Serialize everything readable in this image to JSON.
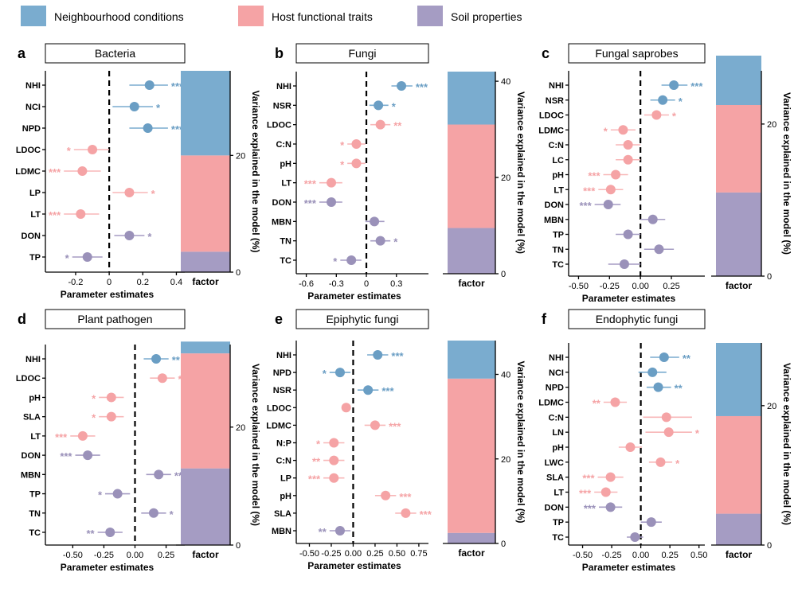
{
  "colors": {
    "neighbourhood": "#7aaccf",
    "host": "#f5a3a5",
    "soil": "#a59cc3",
    "neighbourhood_dark": "#6a9ec4",
    "host_light": "#f8b7b8",
    "soil_dark": "#9a91b9"
  },
  "legend": [
    {
      "label": "Neighbourhood conditions",
      "group": "neighbourhood"
    },
    {
      "label": "Host functional traits",
      "group": "host"
    },
    {
      "label": "Soil properties",
      "group": "soil"
    }
  ],
  "common": {
    "xlabel": "Parameter estimates",
    "bar_xlabel": "factor",
    "bar_ylabel": "Variance explained in the model (%)"
  },
  "chart_data": [
    {
      "panel": "a",
      "title": "Bacteria",
      "type": "forest+stacked_bar",
      "xlim": [
        -0.38,
        0.45
      ],
      "xticks": [
        -0.2,
        0,
        0.2,
        0.4
      ],
      "xtick_labels": [
        "-0.2",
        "0",
        "0.2",
        "0.4"
      ],
      "rows": [
        {
          "label": "NHI",
          "group": "neighbourhood",
          "est": 0.24,
          "lo": 0.12,
          "hi": 0.35,
          "sig": "***"
        },
        {
          "label": "NCI",
          "group": "neighbourhood",
          "est": 0.15,
          "lo": 0.02,
          "hi": 0.26,
          "sig": "*"
        },
        {
          "label": "NPD",
          "group": "neighbourhood",
          "est": 0.23,
          "lo": 0.12,
          "hi": 0.35,
          "sig": "***"
        },
        {
          "label": "LDOC",
          "group": "host",
          "est": -0.1,
          "lo": -0.21,
          "hi": 0.0,
          "sig": "*"
        },
        {
          "label": "LDMC",
          "group": "host",
          "est": -0.16,
          "lo": -0.27,
          "hi": -0.05,
          "sig": "***"
        },
        {
          "label": "LP",
          "group": "host",
          "est": 0.12,
          "lo": 0.02,
          "hi": 0.23,
          "sig": "*"
        },
        {
          "label": "LT",
          "group": "host",
          "est": -0.17,
          "lo": -0.27,
          "hi": -0.06,
          "sig": "***"
        },
        {
          "label": "DON",
          "group": "soil",
          "est": 0.12,
          "lo": 0.03,
          "hi": 0.21,
          "sig": "*"
        },
        {
          "label": "TP",
          "group": "soil",
          "est": -0.13,
          "lo": -0.22,
          "hi": -0.04,
          "sig": "*"
        }
      ],
      "bar": {
        "ymax": 34.5,
        "yticks": [
          0,
          20
        ],
        "segments": [
          {
            "group": "soil",
            "value": 3.5
          },
          {
            "group": "host",
            "value": 16.5
          },
          {
            "group": "neighbourhood",
            "value": 14.5
          }
        ]
      }
    },
    {
      "panel": "b",
      "title": "Fungi",
      "type": "forest+stacked_bar",
      "xlim": [
        -0.7,
        0.62
      ],
      "xticks": [
        -0.6,
        -0.3,
        0,
        0.3
      ],
      "xtick_labels": [
        "-0.6",
        "-0.3",
        "0",
        "0.3"
      ],
      "rows": [
        {
          "label": "NHI",
          "group": "neighbourhood",
          "est": 0.35,
          "lo": 0.25,
          "hi": 0.46,
          "sig": "***"
        },
        {
          "label": "NSR",
          "group": "neighbourhood",
          "est": 0.12,
          "lo": 0.03,
          "hi": 0.22,
          "sig": "*"
        },
        {
          "label": "LDOC",
          "group": "host",
          "est": 0.14,
          "lo": 0.04,
          "hi": 0.24,
          "sig": "**"
        },
        {
          "label": "C:N",
          "group": "host",
          "est": -0.1,
          "lo": -0.19,
          "hi": -0.01,
          "sig": "*"
        },
        {
          "label": "pH",
          "group": "host",
          "est": -0.1,
          "lo": -0.19,
          "hi": -0.01,
          "sig": "*"
        },
        {
          "label": "LT",
          "group": "host",
          "est": -0.35,
          "lo": -0.47,
          "hi": -0.24,
          "sig": "***"
        },
        {
          "label": "DON",
          "group": "soil",
          "est": -0.35,
          "lo": -0.47,
          "hi": -0.24,
          "sig": "***"
        },
        {
          "label": "MBN",
          "group": "soil",
          "est": 0.08,
          "lo": -0.01,
          "hi": 0.18,
          "sig": ""
        },
        {
          "label": "TN",
          "group": "soil",
          "est": 0.14,
          "lo": 0.04,
          "hi": 0.24,
          "sig": "*"
        },
        {
          "label": "TC",
          "group": "soil",
          "est": -0.15,
          "lo": -0.26,
          "hi": -0.05,
          "sig": "*"
        }
      ],
      "bar": {
        "ymax": 42,
        "yticks": [
          0,
          20,
          40
        ],
        "segments": [
          {
            "group": "soil",
            "value": 9.5
          },
          {
            "group": "host",
            "value": 21.5
          },
          {
            "group": "neighbourhood",
            "value": 11
          }
        ]
      }
    },
    {
      "panel": "c",
      "title": "Fungal saprobes",
      "type": "forest+stacked_bar",
      "xlim": [
        -0.58,
        0.52
      ],
      "xticks": [
        -0.5,
        -0.25,
        0,
        0.25
      ],
      "xtick_labels": [
        "-0.50",
        "-0.25",
        "0.00",
        "0.25"
      ],
      "rows": [
        {
          "label": "NHI",
          "group": "neighbourhood",
          "est": 0.27,
          "lo": 0.17,
          "hi": 0.38,
          "sig": "***"
        },
        {
          "label": "NSR",
          "group": "neighbourhood",
          "est": 0.18,
          "lo": 0.08,
          "hi": 0.28,
          "sig": "*"
        },
        {
          "label": "LDOC",
          "group": "host",
          "est": 0.13,
          "lo": 0.03,
          "hi": 0.23,
          "sig": "*"
        },
        {
          "label": "LDMC",
          "group": "host",
          "est": -0.14,
          "lo": -0.24,
          "hi": -0.04,
          "sig": "*"
        },
        {
          "label": "C:N",
          "group": "host",
          "est": -0.1,
          "lo": -0.2,
          "hi": 0.0,
          "sig": ""
        },
        {
          "label": "LC",
          "group": "host",
          "est": -0.1,
          "lo": -0.2,
          "hi": 0.0,
          "sig": ""
        },
        {
          "label": "pH",
          "group": "host",
          "est": -0.2,
          "lo": -0.3,
          "hi": -0.1,
          "sig": "***"
        },
        {
          "label": "LT",
          "group": "host",
          "est": -0.24,
          "lo": -0.34,
          "hi": -0.14,
          "sig": "***"
        },
        {
          "label": "DON",
          "group": "soil",
          "est": -0.26,
          "lo": -0.37,
          "hi": -0.16,
          "sig": "***"
        },
        {
          "label": "MBN",
          "group": "soil",
          "est": 0.1,
          "lo": 0.0,
          "hi": 0.2,
          "sig": ""
        },
        {
          "label": "TP",
          "group": "soil",
          "est": -0.1,
          "lo": -0.2,
          "hi": 0.0,
          "sig": ""
        },
        {
          "label": "TN",
          "group": "soil",
          "est": 0.15,
          "lo": 0.03,
          "hi": 0.27,
          "sig": ""
        },
        {
          "label": "TC",
          "group": "soil",
          "est": -0.13,
          "lo": -0.26,
          "hi": 0.0,
          "sig": ""
        }
      ],
      "bar": {
        "ymax": 27,
        "yticks": [
          0,
          20
        ],
        "segments": [
          {
            "group": "soil",
            "value": 11
          },
          {
            "group": "host",
            "value": 11.5
          },
          {
            "group": "neighbourhood",
            "value": 6.5
          }
        ]
      }
    },
    {
      "panel": "d",
      "title": "Plant pathogen",
      "type": "forest+stacked_bar",
      "xlim": [
        -0.72,
        0.4
      ],
      "xticks": [
        -0.5,
        -0.25,
        0,
        0.25
      ],
      "xtick_labels": [
        "-0.50",
        "-0.25",
        "0.00",
        "0.25"
      ],
      "rows": [
        {
          "label": "NHI",
          "group": "neighbourhood",
          "est": 0.17,
          "lo": 0.07,
          "hi": 0.27,
          "sig": "**"
        },
        {
          "label": "LDOC",
          "group": "host",
          "est": 0.22,
          "lo": 0.12,
          "hi": 0.32,
          "sig": "***"
        },
        {
          "label": "pH",
          "group": "host",
          "est": -0.19,
          "lo": -0.29,
          "hi": -0.09,
          "sig": "*"
        },
        {
          "label": "SLA",
          "group": "host",
          "est": -0.19,
          "lo": -0.29,
          "hi": -0.09,
          "sig": "*"
        },
        {
          "label": "LT",
          "group": "host",
          "est": -0.42,
          "lo": -0.52,
          "hi": -0.32,
          "sig": "***"
        },
        {
          "label": "DON",
          "group": "soil",
          "est": -0.38,
          "lo": -0.48,
          "hi": -0.28,
          "sig": "***"
        },
        {
          "label": "MBN",
          "group": "soil",
          "est": 0.19,
          "lo": 0.09,
          "hi": 0.29,
          "sig": "**"
        },
        {
          "label": "TP",
          "group": "soil",
          "est": -0.14,
          "lo": -0.24,
          "hi": -0.04,
          "sig": "*"
        },
        {
          "label": "TN",
          "group": "soil",
          "est": 0.15,
          "lo": 0.05,
          "hi": 0.25,
          "sig": "*"
        },
        {
          "label": "TC",
          "group": "soil",
          "est": -0.2,
          "lo": -0.3,
          "hi": -0.1,
          "sig": "**"
        }
      ],
      "bar": {
        "ymax": 34,
        "yticks": [
          0,
          20
        ],
        "segments": [
          {
            "group": "soil",
            "value": 13
          },
          {
            "group": "host",
            "value": 19.5
          },
          {
            "group": "neighbourhood",
            "value": 2
          }
        ]
      }
    },
    {
      "panel": "e",
      "title": "Epiphytic fungi",
      "type": "forest+stacked_bar",
      "xlim": [
        -0.65,
        0.86
      ],
      "xticks": [
        -0.5,
        -0.25,
        0,
        0.25,
        0.5,
        0.75
      ],
      "xtick_labels": [
        "-0.50",
        "-0.25",
        "0.00",
        "0.25",
        "0.50",
        "0.75"
      ],
      "rows": [
        {
          "label": "NHI",
          "group": "neighbourhood",
          "est": 0.28,
          "lo": 0.16,
          "hi": 0.4,
          "sig": "***"
        },
        {
          "label": "NPD",
          "group": "neighbourhood",
          "est": -0.15,
          "lo": -0.27,
          "hi": -0.03,
          "sig": "*"
        },
        {
          "label": "NSR",
          "group": "neighbourhood",
          "est": 0.17,
          "lo": 0.05,
          "hi": 0.29,
          "sig": "***"
        },
        {
          "label": "LDOC",
          "group": "host",
          "est": -0.08,
          "lo": -0.13,
          "hi": -0.03,
          "sig": ""
        },
        {
          "label": "LDMC",
          "group": "host",
          "est": 0.25,
          "lo": 0.13,
          "hi": 0.37,
          "sig": "***"
        },
        {
          "label": "N:P",
          "group": "host",
          "est": -0.22,
          "lo": -0.34,
          "hi": -0.1,
          "sig": "*"
        },
        {
          "label": "C:N",
          "group": "host",
          "est": -0.22,
          "lo": -0.34,
          "hi": -0.1,
          "sig": "**"
        },
        {
          "label": "LP",
          "group": "host",
          "est": -0.22,
          "lo": -0.34,
          "hi": -0.1,
          "sig": "***"
        },
        {
          "label": "pH",
          "group": "host",
          "est": 0.37,
          "lo": 0.25,
          "hi": 0.49,
          "sig": "***"
        },
        {
          "label": "SLA",
          "group": "host",
          "est": 0.6,
          "lo": 0.48,
          "hi": 0.72,
          "sig": "***"
        },
        {
          "label": "MBN",
          "group": "soil",
          "est": -0.15,
          "lo": -0.27,
          "hi": -0.03,
          "sig": "**"
        }
      ],
      "bar": {
        "ymax": 48,
        "yticks": [
          0,
          20,
          40
        ],
        "segments": [
          {
            "group": "soil",
            "value": 2.5
          },
          {
            "group": "host",
            "value": 36.5
          },
          {
            "group": "neighbourhood",
            "value": 9
          }
        ]
      }
    },
    {
      "panel": "f",
      "title": "Endophytic fungi",
      "type": "forest+stacked_bar",
      "xlim": [
        -0.62,
        0.55
      ],
      "xticks": [
        -0.5,
        -0.25,
        0,
        0.25,
        0.5
      ],
      "xtick_labels": [
        "-0.50",
        "-0.25",
        "0.00",
        "0.25",
        "0.50"
      ],
      "rows": [
        {
          "label": "NHI",
          "group": "neighbourhood",
          "est": 0.2,
          "lo": 0.08,
          "hi": 0.33,
          "sig": "**"
        },
        {
          "label": "NCI",
          "group": "neighbourhood",
          "est": 0.1,
          "lo": -0.02,
          "hi": 0.22,
          "sig": ""
        },
        {
          "label": "NPD",
          "group": "neighbourhood",
          "est": 0.15,
          "lo": 0.05,
          "hi": 0.26,
          "sig": "**"
        },
        {
          "label": "LDMC",
          "group": "host",
          "est": -0.22,
          "lo": -0.32,
          "hi": -0.12,
          "sig": "**"
        },
        {
          "label": "C:N",
          "group": "host",
          "est": 0.22,
          "lo": 0.02,
          "hi": 0.44,
          "sig": ""
        },
        {
          "label": "LN",
          "group": "host",
          "est": 0.24,
          "lo": 0.04,
          "hi": 0.44,
          "sig": "*"
        },
        {
          "label": "pH",
          "group": "host",
          "est": -0.09,
          "lo": -0.19,
          "hi": 0.01,
          "sig": ""
        },
        {
          "label": "LWC",
          "group": "host",
          "est": 0.17,
          "lo": 0.07,
          "hi": 0.27,
          "sig": "*"
        },
        {
          "label": "SLA",
          "group": "host",
          "est": -0.26,
          "lo": -0.37,
          "hi": -0.15,
          "sig": "***"
        },
        {
          "label": "LT",
          "group": "host",
          "est": -0.3,
          "lo": -0.4,
          "hi": -0.2,
          "sig": "***"
        },
        {
          "label": "DON",
          "group": "soil",
          "est": -0.26,
          "lo": -0.36,
          "hi": -0.16,
          "sig": "***"
        },
        {
          "label": "TP",
          "group": "soil",
          "est": 0.09,
          "lo": 0.0,
          "hi": 0.18,
          "sig": ""
        },
        {
          "label": "TC",
          "group": "soil",
          "est": -0.05,
          "lo": -0.12,
          "hi": 0.02,
          "sig": ""
        }
      ],
      "bar": {
        "ymax": 29,
        "yticks": [
          0,
          20
        ],
        "segments": [
          {
            "group": "soil",
            "value": 4.5
          },
          {
            "group": "host",
            "value": 14
          },
          {
            "group": "neighbourhood",
            "value": 10.5
          }
        ]
      }
    }
  ]
}
